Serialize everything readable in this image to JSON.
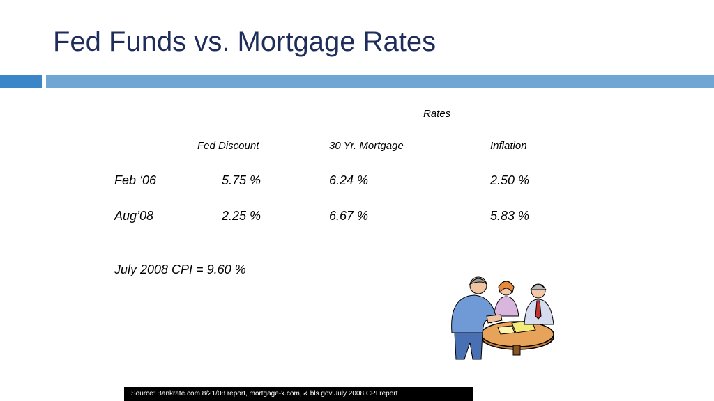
{
  "slide": {
    "title": "Fed Funds vs. Mortgage Rates"
  },
  "table": {
    "group_header": "Rates",
    "columns": [
      "Fed Discount",
      "30 Yr. Mortgage",
      "Inflation"
    ],
    "rows": [
      {
        "label": "Feb ‘06",
        "values": [
          "5.75 %",
          "6.24 %",
          "2.50 %"
        ]
      },
      {
        "label": "Aug’08",
        "values": [
          "2.25 %",
          "6.67 %",
          "5.83 %"
        ]
      }
    ]
  },
  "note": "July 2008 CPI = 9.60 %",
  "source": "Source: Bankrate.com 8/21/08 report, mortgage-x.com, & bls.gov July 2008 CPI report",
  "clipart": {
    "icon": "business-meeting-icon"
  },
  "colors": {
    "title": "#1f2d5a",
    "accent_bar_left": "#3b86c9",
    "accent_bar_right": "#6fa6d4"
  }
}
